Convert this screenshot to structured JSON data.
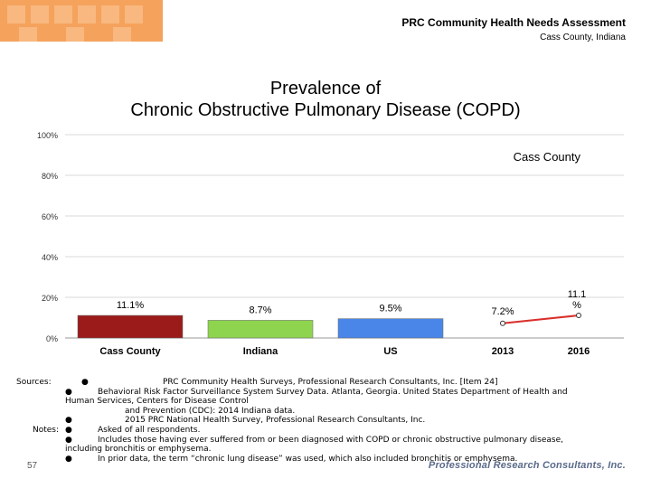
{
  "header": {
    "assessment_title": "PRC Community Health Needs Assessment",
    "location": "Cass County, Indiana"
  },
  "title_line1": "Prevalence of",
  "title_line2": "Chronic Obstructive Pulmonary Disease (COPD)",
  "chart_data": [
    {
      "type": "bar",
      "categories": [
        "Cass County",
        "Indiana",
        "US"
      ],
      "values": [
        11.1,
        8.7,
        9.5
      ],
      "data_labels": [
        "11.1%",
        "8.7%",
        "9.5%"
      ],
      "colors": [
        "#9b1b1b",
        "#8ed44f",
        "#4a86e8"
      ],
      "ylim": [
        0,
        100
      ],
      "yticks": [
        0,
        20,
        40,
        60,
        80,
        100
      ],
      "ytick_labels": [
        "0%",
        "20%",
        "40%",
        "60%",
        "80%",
        "100%"
      ],
      "grid": true
    },
    {
      "type": "line",
      "title": "Cass County",
      "x": [
        "2013",
        "2016"
      ],
      "values": [
        7.2,
        11.1
      ],
      "data_labels": [
        "7.2%",
        "11.1%"
      ],
      "color": "#d9302c",
      "ylim": [
        0,
        100
      ]
    }
  ],
  "notes": {
    "sources_label": "Sources:",
    "notes_label": "Notes:",
    "bullet": "●",
    "source_1": "PRC Community Health Surveys, Professional Research Consultants, Inc. [Item 24]",
    "source_2a": "Behavioral Risk Factor Surveillance System Survey Data. Atlanta, Georgia. United States Department of Health and",
    "source_2b": "Human Services, Centers for Disease Control",
    "source_2c": "and Prevention (CDC): 2014 Indiana data.",
    "source_3": "2015 PRC National Health Survey, Professional Research Consultants, Inc.",
    "note_1": "Asked of all respondents.",
    "note_2a": "Includes those having ever suffered from or been diagnosed with COPD or chronic obstructive pulmonary disease,",
    "note_2b": "including bronchitis or emphysema.",
    "note_3": "In prior data, the term “chronic lung disease” was used, which also included bronchitis or emphysema."
  },
  "page_number": "57",
  "company": "Professional Research Consultants, Inc."
}
